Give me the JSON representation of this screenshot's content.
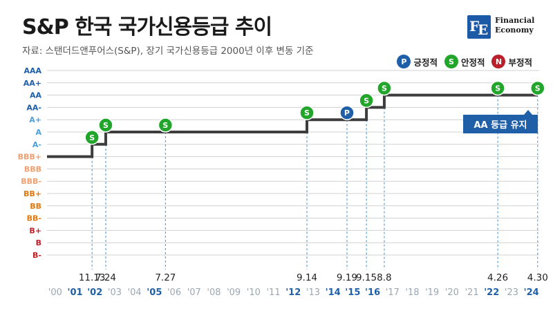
{
  "header": {
    "title": "S&P 한국 국가신용등급 추이",
    "subtitle": "자료: 스탠더드앤푸어스(S&P), 장기 국가신용등급 2000년 이후 변동 기준"
  },
  "brand": {
    "mark": "FE",
    "name_line1": "Financial",
    "name_line2": "Economy"
  },
  "legend": [
    {
      "symbol": "P",
      "label": "긍정적",
      "color": "#1f5fa8"
    },
    {
      "symbol": "S",
      "label": "안정적",
      "color": "#22a52b"
    },
    {
      "symbol": "N",
      "label": "부정적",
      "color": "#b8202c"
    }
  ],
  "callout": "AA 등급 유지",
  "colors": {
    "line": "#3d3d3d",
    "grid": "#d0d0d0",
    "guide": "#3b8fd0",
    "rating_blue": "#1f5fa8",
    "rating_lightblue": "#4d9fd8",
    "rating_orange": "#f0a070",
    "rating_deeporange": "#e07a10",
    "rating_red": "#c0202a",
    "year_gray": "#9aa7b3",
    "year_blue": "#1f5fa8"
  },
  "chart_data": {
    "type": "line",
    "y_categories": [
      "AAA",
      "AA+",
      "AA",
      "AA-",
      "A+",
      "A",
      "A-",
      "BBB+",
      "BBB",
      "BBB-",
      "BB+",
      "BB",
      "BB-",
      "B+",
      "B",
      "B-"
    ],
    "y_category_colors": [
      "rating_blue",
      "rating_blue",
      "rating_blue",
      "rating_blue",
      "rating_lightblue",
      "rating_lightblue",
      "rating_lightblue",
      "rating_orange",
      "rating_orange",
      "rating_orange",
      "rating_deeporange",
      "rating_deeporange",
      "rating_deeporange",
      "rating_red",
      "rating_red",
      "rating_red"
    ],
    "x_years": [
      "'00",
      "'01",
      "'02",
      "'03",
      "'04",
      "'05",
      "'06",
      "'07",
      "'08",
      "'09",
      "'10",
      "'11",
      "'12",
      "'13",
      "'14",
      "'15",
      "'16",
      "'17",
      "'18",
      "'19",
      "'20",
      "'21",
      "'22",
      "'23",
      "'24"
    ],
    "highlighted_years": [
      "'01",
      "'02",
      "'05",
      "'12",
      "'14",
      "'15",
      "'16",
      "'22",
      "'24"
    ],
    "start_rating": "BBB+",
    "events": [
      {
        "date": "11.13",
        "year": 2001,
        "fraction": 0.87,
        "rating": "A-",
        "outlook": "S"
      },
      {
        "date": "7.24",
        "year": 2002,
        "fraction": 0.56,
        "rating": "A",
        "outlook": "S"
      },
      {
        "date": "7.27",
        "year": 2005,
        "fraction": 0.57,
        "rating": "A",
        "outlook": "S"
      },
      {
        "date": "9.14",
        "year": 2012,
        "fraction": 0.7,
        "rating": "A+",
        "outlook": "S"
      },
      {
        "date": "9.19",
        "year": 2014,
        "fraction": 0.72,
        "rating": "A+",
        "outlook": "P"
      },
      {
        "date": "9.15",
        "year": 2015,
        "fraction": 0.7,
        "rating": "AA-",
        "outlook": "S"
      },
      {
        "date": "8.8",
        "year": 2016,
        "fraction": 0.6,
        "rating": "AA",
        "outlook": "S"
      },
      {
        "date": "4.26",
        "year": 2022,
        "fraction": 0.32,
        "rating": "AA",
        "outlook": "S"
      },
      {
        "date": "4.30",
        "year": 2024,
        "fraction": 0.33,
        "rating": "AA",
        "outlook": "S"
      }
    ],
    "end_rating": "AA",
    "grid": true,
    "legend_position": "top-right"
  }
}
